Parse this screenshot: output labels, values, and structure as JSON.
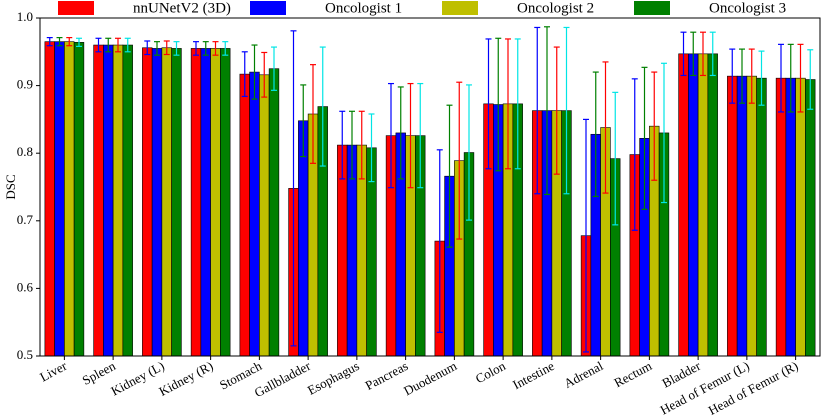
{
  "chart_data": {
    "type": "bar",
    "ylabel": "DSC",
    "categories": [
      "Liver",
      "Spleen",
      "Kidney (L)",
      "Kidney (R)",
      "Stomach",
      "Gallbladder",
      "Esophagus",
      "Pancreas",
      "Duodenum",
      "Colon",
      "Intestine",
      "Adrenal",
      "Rectum",
      "Bladder",
      "Head of Femur (L)",
      "Head of Femur (R)"
    ],
    "series": [
      {
        "name": "nnUNetV2 (3D)",
        "color": "#ff0000",
        "error_color": "#0000ff",
        "values": [
          0.965,
          0.96,
          0.956,
          0.955,
          0.917,
          0.748,
          0.812,
          0.826,
          0.67,
          0.873,
          0.863,
          0.678,
          0.798,
          0.947,
          0.914,
          0.911
        ],
        "errors": [
          0.006,
          0.01,
          0.01,
          0.01,
          0.033,
          0.233,
          0.05,
          0.077,
          0.135,
          0.096,
          0.123,
          0.172,
          0.112,
          0.032,
          0.04,
          0.05
        ]
      },
      {
        "name": "Oncologist 1",
        "color": "#0000ff",
        "error_color": "#008000",
        "values": [
          0.965,
          0.96,
          0.955,
          0.955,
          0.92,
          0.848,
          0.812,
          0.83,
          0.766,
          0.872,
          0.863,
          0.828,
          0.822,
          0.947,
          0.914,
          0.911
        ],
        "errors": [
          0.006,
          0.01,
          0.01,
          0.01,
          0.04,
          0.053,
          0.05,
          0.068,
          0.105,
          0.098,
          0.124,
          0.092,
          0.105,
          0.032,
          0.04,
          0.05
        ]
      },
      {
        "name": "Oncologist 2",
        "color": "#bfbf00",
        "error_color": "#ff0000",
        "values": [
          0.965,
          0.96,
          0.956,
          0.955,
          0.916,
          0.858,
          0.812,
          0.826,
          0.789,
          0.873,
          0.863,
          0.838,
          0.84,
          0.947,
          0.914,
          0.911
        ],
        "errors": [
          0.006,
          0.01,
          0.01,
          0.01,
          0.033,
          0.073,
          0.05,
          0.077,
          0.116,
          0.096,
          0.094,
          0.097,
          0.08,
          0.032,
          0.04,
          0.05
        ]
      },
      {
        "name": "Oncologist 3",
        "color": "#008000",
        "error_color": "#00e5e5",
        "values": [
          0.964,
          0.96,
          0.955,
          0.955,
          0.925,
          0.869,
          0.808,
          0.826,
          0.801,
          0.873,
          0.863,
          0.792,
          0.83,
          0.947,
          0.911,
          0.909
        ],
        "errors": [
          0.006,
          0.01,
          0.01,
          0.01,
          0.032,
          0.088,
          0.05,
          0.077,
          0.1,
          0.096,
          0.123,
          0.098,
          0.103,
          0.032,
          0.04,
          0.044
        ]
      }
    ],
    "ylim": [
      0.5,
      1.0
    ],
    "yticks": [
      0.5,
      0.6,
      0.7,
      0.8,
      0.9,
      {
        "value": 1.0,
        "label": "1.0"
      }
    ]
  }
}
